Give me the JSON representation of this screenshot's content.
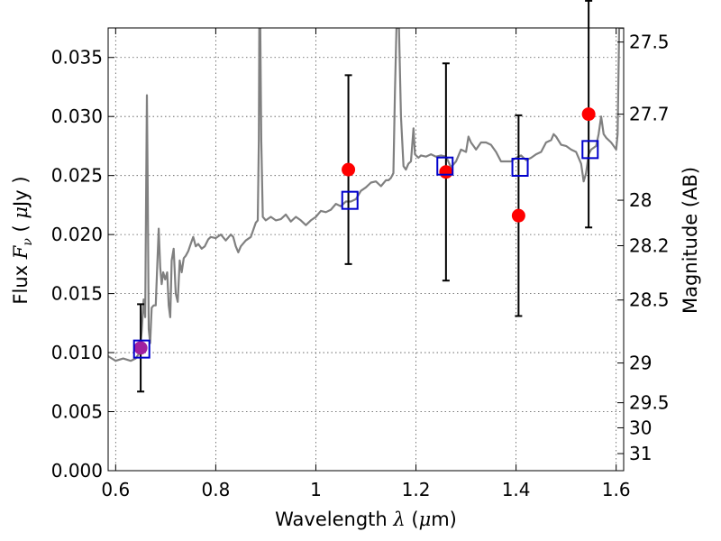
{
  "chart_data": {
    "type": "scatter",
    "xlabel": {
      "prefix": "Wavelength  ",
      "symbol": "λ",
      "unit_open": " (",
      "unit_sym": "μ",
      "unit_close": "m)"
    },
    "ylabel": {
      "prefix": "Flux  ",
      "symbol": "F",
      "sub": "ν",
      "unit_open": "  (  ",
      "unit_sym": "μ",
      "unit_close": "Jy )"
    },
    "y2label": "Magnitude (AB)",
    "xlim": [
      0.585,
      1.615
    ],
    "ylim": [
      0.0,
      0.0375
    ],
    "grid": true,
    "x_ticks": [
      {
        "value": 0.6,
        "label": "0.6"
      },
      {
        "value": 0.8,
        "label": "0.8"
      },
      {
        "value": 1.0,
        "label": "1"
      },
      {
        "value": 1.2,
        "label": "1.2"
      },
      {
        "value": 1.4,
        "label": "1.4"
      },
      {
        "value": 1.6,
        "label": "1.6"
      }
    ],
    "y_ticks": [
      {
        "value": 0.0,
        "label": "0.000"
      },
      {
        "value": 0.005,
        "label": "0.005"
      },
      {
        "value": 0.01,
        "label": "0.010"
      },
      {
        "value": 0.015,
        "label": "0.015"
      },
      {
        "value": 0.02,
        "label": "0.020"
      },
      {
        "value": 0.025,
        "label": "0.025"
      },
      {
        "value": 0.03,
        "label": "0.030"
      },
      {
        "value": 0.035,
        "label": "0.035"
      }
    ],
    "y2_ticks": [
      {
        "value": 27.5,
        "label": "27.5"
      },
      {
        "value": 27.7,
        "label": "27.7"
      },
      {
        "value": 28.0,
        "label": "28"
      },
      {
        "value": 28.2,
        "label": "28.2"
      },
      {
        "value": 28.5,
        "label": "28.5"
      },
      {
        "value": 29.0,
        "label": "29"
      },
      {
        "value": 29.5,
        "label": "29.5"
      },
      {
        "value": 30.0,
        "label": "30"
      },
      {
        "value": 31.0,
        "label": "31"
      }
    ],
    "series": [
      {
        "role": "model-spectrum",
        "type": "line",
        "color": "#808080",
        "points": [
          [
            0.585,
            0.0097
          ],
          [
            0.6,
            0.0093
          ],
          [
            0.615,
            0.0095
          ],
          [
            0.63,
            0.0093
          ],
          [
            0.64,
            0.0095
          ],
          [
            0.648,
            0.01
          ],
          [
            0.652,
            0.0118
          ],
          [
            0.656,
            0.0145
          ],
          [
            0.659,
            0.013
          ],
          [
            0.661,
            0.024
          ],
          [
            0.6625,
            0.0318
          ],
          [
            0.664,
            0.024
          ],
          [
            0.666,
            0.012
          ],
          [
            0.669,
            0.0108
          ],
          [
            0.672,
            0.0138
          ],
          [
            0.676,
            0.014
          ],
          [
            0.68,
            0.014
          ],
          [
            0.683,
            0.0172
          ],
          [
            0.686,
            0.0205
          ],
          [
            0.689,
            0.0172
          ],
          [
            0.692,
            0.0158
          ],
          [
            0.695,
            0.0168
          ],
          [
            0.699,
            0.0162
          ],
          [
            0.703,
            0.0168
          ],
          [
            0.706,
            0.014
          ],
          [
            0.709,
            0.013
          ],
          [
            0.712,
            0.0178
          ],
          [
            0.716,
            0.0188
          ],
          [
            0.72,
            0.015
          ],
          [
            0.724,
            0.0143
          ],
          [
            0.728,
            0.0178
          ],
          [
            0.732,
            0.0168
          ],
          [
            0.736,
            0.018
          ],
          [
            0.74,
            0.0182
          ],
          [
            0.745,
            0.0186
          ],
          [
            0.75,
            0.0192
          ],
          [
            0.755,
            0.0198
          ],
          [
            0.76,
            0.019
          ],
          [
            0.765,
            0.0192
          ],
          [
            0.772,
            0.0188
          ],
          [
            0.778,
            0.019
          ],
          [
            0.785,
            0.0196
          ],
          [
            0.79,
            0.0198
          ],
          [
            0.8,
            0.0197
          ],
          [
            0.81,
            0.02
          ],
          [
            0.82,
            0.0195
          ],
          [
            0.83,
            0.02
          ],
          [
            0.835,
            0.0198
          ],
          [
            0.84,
            0.019
          ],
          [
            0.845,
            0.0185
          ],
          [
            0.85,
            0.019
          ],
          [
            0.86,
            0.0195
          ],
          [
            0.87,
            0.0198
          ],
          [
            0.88,
            0.021
          ],
          [
            0.884,
            0.0212
          ],
          [
            0.886,
            0.028
          ],
          [
            0.887,
            0.0375
          ],
          [
            0.889,
            0.0375
          ],
          [
            0.891,
            0.028
          ],
          [
            0.894,
            0.0215
          ],
          [
            0.9,
            0.0212
          ],
          [
            0.91,
            0.0215
          ],
          [
            0.92,
            0.0212
          ],
          [
            0.93,
            0.0213
          ],
          [
            0.94,
            0.0217
          ],
          [
            0.95,
            0.0211
          ],
          [
            0.96,
            0.0215
          ],
          [
            0.97,
            0.0212
          ],
          [
            0.98,
            0.0208
          ],
          [
            0.99,
            0.0212
          ],
          [
            1.0,
            0.0215
          ],
          [
            1.01,
            0.022
          ],
          [
            1.02,
            0.0219
          ],
          [
            1.03,
            0.0221
          ],
          [
            1.04,
            0.0226
          ],
          [
            1.05,
            0.0224
          ],
          [
            1.06,
            0.0228
          ],
          [
            1.07,
            0.0228
          ],
          [
            1.08,
            0.023
          ],
          [
            1.09,
            0.0237
          ],
          [
            1.1,
            0.024
          ],
          [
            1.11,
            0.0244
          ],
          [
            1.12,
            0.0245
          ],
          [
            1.13,
            0.0241
          ],
          [
            1.14,
            0.0246
          ],
          [
            1.145,
            0.0246
          ],
          [
            1.15,
            0.0248
          ],
          [
            1.155,
            0.0252
          ],
          [
            1.158,
            0.032
          ],
          [
            1.161,
            0.0375
          ],
          [
            1.166,
            0.0375
          ],
          [
            1.17,
            0.03
          ],
          [
            1.175,
            0.0258
          ],
          [
            1.18,
            0.0255
          ],
          [
            1.185,
            0.026
          ],
          [
            1.19,
            0.0262
          ],
          [
            1.195,
            0.029
          ],
          [
            1.198,
            0.0268
          ],
          [
            1.205,
            0.0265
          ],
          [
            1.21,
            0.0267
          ],
          [
            1.22,
            0.0266
          ],
          [
            1.23,
            0.0268
          ],
          [
            1.24,
            0.0266
          ],
          [
            1.25,
            0.0267
          ],
          [
            1.26,
            0.0266
          ],
          [
            1.27,
            0.0257
          ],
          [
            1.28,
            0.0262
          ],
          [
            1.29,
            0.0272
          ],
          [
            1.3,
            0.027
          ],
          [
            1.305,
            0.0283
          ],
          [
            1.31,
            0.0278
          ],
          [
            1.315,
            0.0275
          ],
          [
            1.32,
            0.0272
          ],
          [
            1.33,
            0.0278
          ],
          [
            1.34,
            0.0278
          ],
          [
            1.35,
            0.0276
          ],
          [
            1.36,
            0.027
          ],
          [
            1.37,
            0.0262
          ],
          [
            1.38,
            0.0262
          ],
          [
            1.39,
            0.0262
          ],
          [
            1.4,
            0.0265
          ],
          [
            1.41,
            0.0267
          ],
          [
            1.42,
            0.0263
          ],
          [
            1.43,
            0.0265
          ],
          [
            1.44,
            0.0268
          ],
          [
            1.45,
            0.027
          ],
          [
            1.46,
            0.0278
          ],
          [
            1.47,
            0.028
          ],
          [
            1.475,
            0.0285
          ],
          [
            1.48,
            0.0283
          ],
          [
            1.49,
            0.0276
          ],
          [
            1.5,
            0.0275
          ],
          [
            1.51,
            0.0272
          ],
          [
            1.52,
            0.027
          ],
          [
            1.53,
            0.026
          ],
          [
            1.535,
            0.0245
          ],
          [
            1.54,
            0.0252
          ],
          [
            1.545,
            0.0268
          ],
          [
            1.55,
            0.0272
          ],
          [
            1.56,
            0.0275
          ],
          [
            1.565,
            0.0285
          ],
          [
            1.57,
            0.03
          ],
          [
            1.575,
            0.0285
          ],
          [
            1.58,
            0.0282
          ],
          [
            1.59,
            0.0278
          ],
          [
            1.595,
            0.0275
          ],
          [
            1.6,
            0.0272
          ],
          [
            1.603,
            0.0285
          ],
          [
            1.606,
            0.0375
          ],
          [
            1.615,
            0.0375
          ]
        ]
      },
      {
        "role": "observed-photometry",
        "type": "errorbar",
        "color": "#000000",
        "points": [
          {
            "x": 0.65,
            "y": 0.0104,
            "yerr": 0.0037
          },
          {
            "x": 1.065,
            "y": 0.0255,
            "yerr": 0.008
          },
          {
            "x": 1.26,
            "y": 0.0253,
            "yerr": 0.0092
          },
          {
            "x": 1.405,
            "y": 0.0216,
            "yerr": 0.0085
          },
          {
            "x": 1.545,
            "y": 0.0302,
            "yerr": 0.0096
          }
        ]
      },
      {
        "role": "model-photometry",
        "type": "scatter",
        "marker": "open-square",
        "color": "#0000cc",
        "points": [
          {
            "x": 0.652,
            "y": 0.0103
          },
          {
            "x": 1.068,
            "y": 0.0229
          },
          {
            "x": 1.258,
            "y": 0.0258
          },
          {
            "x": 1.408,
            "y": 0.0257
          },
          {
            "x": 1.548,
            "y": 0.0272
          }
        ]
      }
    ]
  },
  "colors": {
    "spectrum": "#808080",
    "observed_marker": "#ff0000",
    "overlap_marker": "#a020a0",
    "model_marker": "#0000cc",
    "errorbar": "#000000",
    "grid": "#555555"
  }
}
